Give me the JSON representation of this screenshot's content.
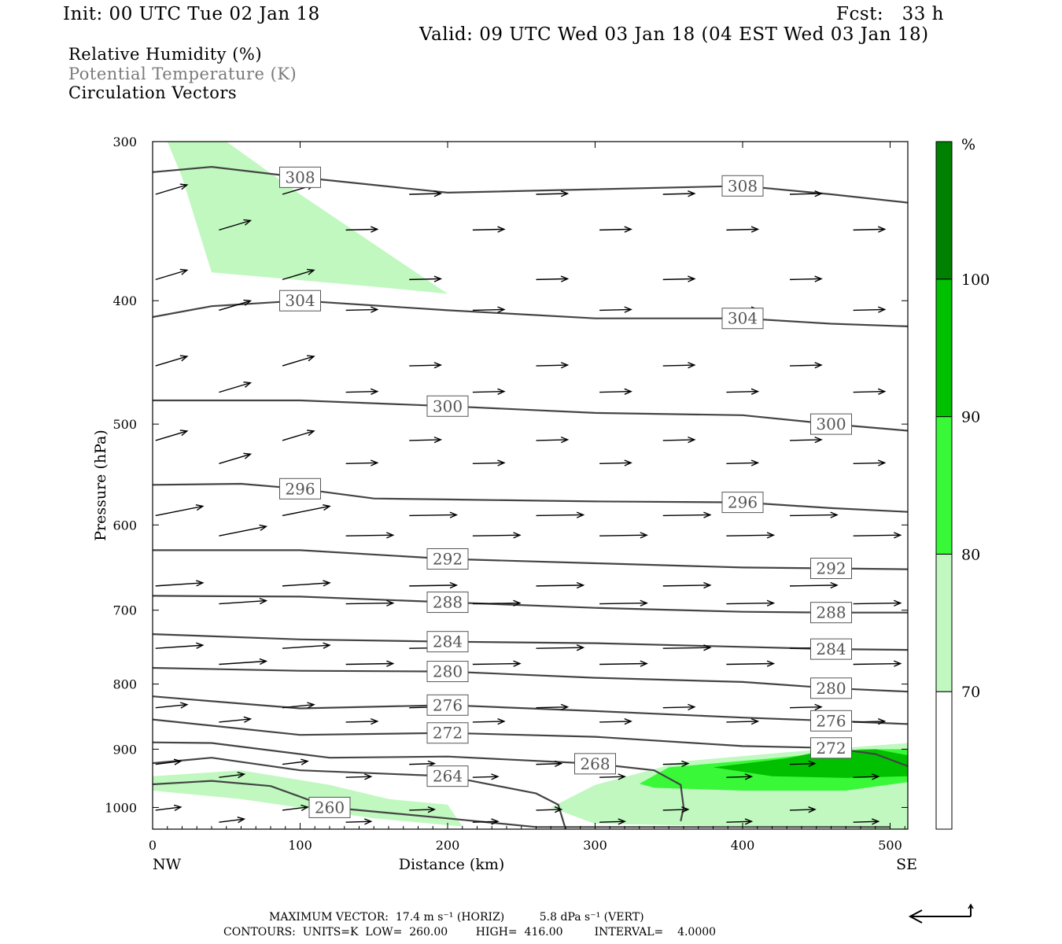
{
  "header": {
    "init": "Init: 00 UTC Tue 02 Jan 18",
    "fcst": "Fcst:   33 h",
    "valid": "Valid: 09 UTC Wed 03 Jan 18 (04 EST Wed 03 Jan 18)"
  },
  "legend": {
    "rh": "Relative Humidity (%)",
    "theta": "Potential Temperature (K)",
    "vectors": "Circulation Vectors"
  },
  "footer": {
    "line1": "MAXIMUM VECTOR:  17.4 m s⁻¹ (HORIZ)          5.8 dPa s⁻¹ (VERT)",
    "line2": "CONTOURS:  UNITS=K  LOW=  260.00        HIGH=  416.00         INTERVAL=    4.0000"
  },
  "colors": {
    "rh70": "#c0f8c0",
    "rh80": "#38f838",
    "rh90": "#00c000",
    "rh100": "#008000",
    "contour": "#444444",
    "vector": "#000000"
  },
  "chart_data": {
    "type": "contour",
    "xlabel": "Distance (km)",
    "ylabel": "Pressure (hPa)",
    "xlim": [
      0,
      512
    ],
    "ylim": [
      1040,
      300
    ],
    "y_scale": "log",
    "x_ticks": [
      0,
      100,
      200,
      300,
      400,
      500
    ],
    "y_ticks": [
      300,
      400,
      500,
      600,
      700,
      800,
      900,
      1000
    ],
    "x_end_labels": {
      "left": "NW",
      "right": "SE"
    },
    "colorbar": {
      "unit": "%",
      "levels": [
        70,
        80,
        90,
        100
      ],
      "labels": [
        "70",
        "80",
        "90",
        "100"
      ],
      "colors": [
        "#ffffff",
        "#c0f8c0",
        "#38f838",
        "#00c000",
        "#008000"
      ]
    },
    "theta_contours": [
      {
        "value": 308,
        "label": "308",
        "points": [
          [
            0,
            317
          ],
          [
            40,
            314
          ],
          [
            100,
            320
          ],
          [
            200,
            329
          ],
          [
            300,
            327
          ],
          [
            400,
            325
          ],
          [
            460,
            330
          ],
          [
            512,
            335
          ]
        ]
      },
      {
        "value": 304,
        "label": "304",
        "points": [
          [
            0,
            412
          ],
          [
            40,
            404
          ],
          [
            100,
            400
          ],
          [
            200,
            407
          ],
          [
            300,
            413
          ],
          [
            400,
            413
          ],
          [
            460,
            417
          ],
          [
            512,
            419
          ]
        ]
      },
      {
        "value": 300,
        "label": "300",
        "points": [
          [
            0,
            479
          ],
          [
            100,
            479
          ],
          [
            200,
            484
          ],
          [
            300,
            490
          ],
          [
            400,
            492
          ],
          [
            460,
            500
          ],
          [
            512,
            506
          ]
        ]
      },
      {
        "value": 296,
        "label": "296",
        "points": [
          [
            0,
            558
          ],
          [
            60,
            557
          ],
          [
            100,
            562
          ],
          [
            150,
            572
          ],
          [
            200,
            573
          ],
          [
            300,
            575
          ],
          [
            400,
            576
          ],
          [
            460,
            582
          ],
          [
            512,
            586
          ]
        ]
      },
      {
        "value": 292,
        "label": "292",
        "points": [
          [
            0,
            628
          ],
          [
            100,
            628
          ],
          [
            200,
            638
          ],
          [
            300,
            643
          ],
          [
            400,
            648
          ],
          [
            460,
            649
          ],
          [
            512,
            650
          ]
        ]
      },
      {
        "value": 288,
        "label": "288",
        "points": [
          [
            0,
            682
          ],
          [
            100,
            683
          ],
          [
            200,
            690
          ],
          [
            300,
            697
          ],
          [
            400,
            702
          ],
          [
            460,
            703
          ],
          [
            512,
            703
          ]
        ]
      },
      {
        "value": 284,
        "label": "284",
        "points": [
          [
            0,
            731
          ],
          [
            100,
            738
          ],
          [
            200,
            741
          ],
          [
            300,
            743
          ],
          [
            400,
            748
          ],
          [
            460,
            751
          ],
          [
            512,
            752
          ]
        ]
      },
      {
        "value": 280,
        "label": "280",
        "points": [
          [
            0,
            777
          ],
          [
            100,
            781
          ],
          [
            200,
            782
          ],
          [
            300,
            791
          ],
          [
            400,
            797
          ],
          [
            460,
            806
          ],
          [
            512,
            811
          ]
        ]
      },
      {
        "value": 276,
        "label": "276",
        "points": [
          [
            0,
            818
          ],
          [
            100,
            836
          ],
          [
            200,
            831
          ],
          [
            300,
            840
          ],
          [
            400,
            850
          ],
          [
            460,
            855
          ],
          [
            512,
            860
          ]
        ]
      },
      {
        "value": 272,
        "label": "272",
        "points": [
          [
            0,
            853
          ],
          [
            100,
            877
          ],
          [
            200,
            874
          ],
          [
            300,
            880
          ],
          [
            400,
            895
          ],
          [
            460,
            898
          ],
          [
            490,
            908
          ],
          [
            512,
            928
          ]
        ]
      },
      {
        "value": 268,
        "label": "268",
        "points": [
          [
            0,
            889
          ],
          [
            40,
            890
          ],
          [
            120,
            914
          ],
          [
            200,
            912
          ],
          [
            300,
            924
          ],
          [
            340,
            935
          ],
          [
            358,
            960
          ],
          [
            360,
            1000
          ],
          [
            358,
            1025
          ]
        ]
      },
      {
        "value": 264,
        "label": "264",
        "points": [
          [
            0,
            923
          ],
          [
            40,
            914
          ],
          [
            100,
            935
          ],
          [
            200,
            945
          ],
          [
            260,
            975
          ],
          [
            275,
            995
          ],
          [
            280,
            1040
          ]
        ]
      },
      {
        "value": 260,
        "label": "260",
        "points": [
          [
            0,
            959
          ],
          [
            40,
            953
          ],
          [
            80,
            962
          ],
          [
            120,
            1000
          ],
          [
            200,
            1020
          ],
          [
            260,
            1036
          ],
          [
            500,
            1036
          ]
        ]
      }
    ],
    "rh_regions": [
      {
        "level": "70-80",
        "description": "upper-left moist tongue",
        "points": [
          [
            10,
            300
          ],
          [
            50,
            300
          ],
          [
            100,
            330
          ],
          [
            200,
            395
          ],
          [
            150,
            390
          ],
          [
            40,
            380
          ],
          [
            20,
            320
          ]
        ]
      },
      {
        "level": "70-80",
        "description": "low-level moist layer lower-left",
        "points": [
          [
            0,
            945
          ],
          [
            60,
            935
          ],
          [
            120,
            960
          ],
          [
            160,
            985
          ],
          [
            200,
            995
          ],
          [
            210,
            1035
          ],
          [
            150,
            1020
          ],
          [
            60,
            985
          ],
          [
            0,
            970
          ]
        ]
      },
      {
        "level": "70-80",
        "description": "low-level moist layer lower-right",
        "points": [
          [
            270,
            1000
          ],
          [
            300,
            960
          ],
          [
            360,
            920
          ],
          [
            430,
            905
          ],
          [
            512,
            890
          ],
          [
            512,
            1040
          ],
          [
            300,
            1030
          ]
        ]
      },
      {
        "level": "80-90",
        "description": "low-level moist core",
        "points": [
          [
            330,
            958
          ],
          [
            350,
            930
          ],
          [
            420,
            915
          ],
          [
            480,
            900
          ],
          [
            512,
            900
          ],
          [
            512,
            955
          ],
          [
            470,
            970
          ],
          [
            400,
            970
          ],
          [
            340,
            965
          ]
        ]
      },
      {
        "level": "90-100",
        "description": "saturated core",
        "points": [
          [
            380,
            930
          ],
          [
            430,
            915
          ],
          [
            450,
            905
          ],
          [
            490,
            900
          ],
          [
            512,
            910
          ],
          [
            512,
            945
          ],
          [
            470,
            948
          ],
          [
            420,
            945
          ]
        ]
      }
    ],
    "max_vector": {
      "horizontal": "17.4 m s-1",
      "vertical": "5.8 dPa s-1"
    },
    "contour_info": {
      "units": "K",
      "low": 260.0,
      "high": 416.0,
      "interval": 4.0
    }
  }
}
